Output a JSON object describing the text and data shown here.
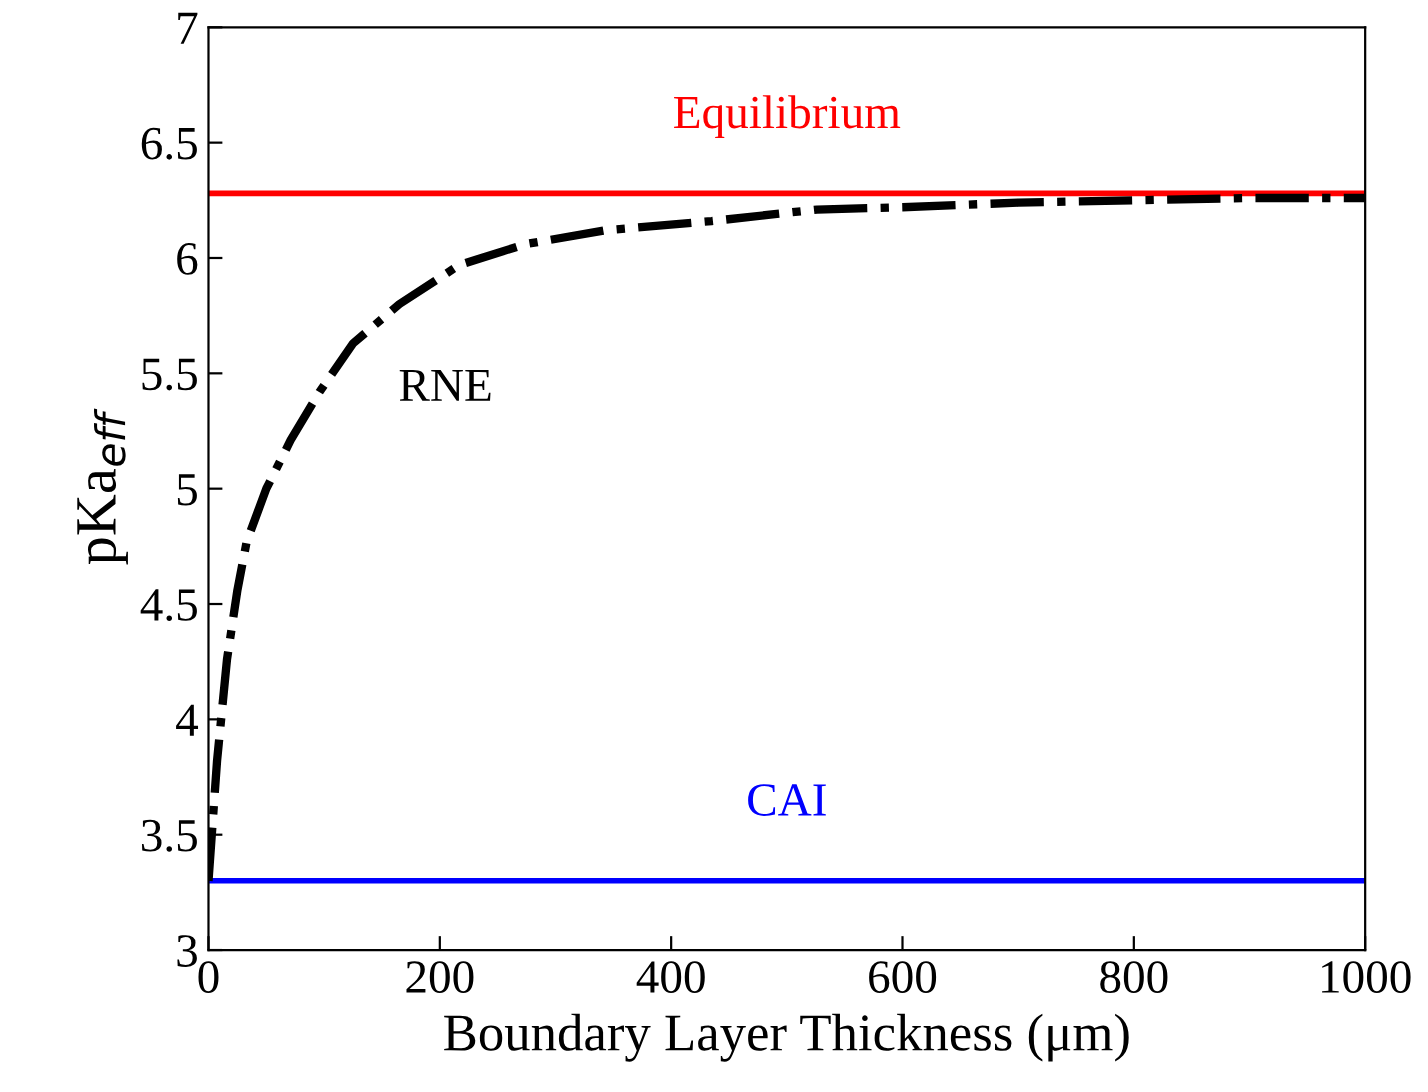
{
  "chart_data": {
    "type": "line",
    "xlabel": "Boundary Layer Thickness (μm)",
    "ylabel": "pKa$_{eff}$",
    "x": [
      0,
      7.4,
      16,
      25,
      33,
      50,
      71,
      96,
      125,
      165,
      217,
      274,
      343,
      435,
      526,
      600,
      700,
      800,
      900,
      1000
    ],
    "series": [
      {
        "name": "RNE",
        "color": "#000000",
        "line_style": "dashdot",
        "values": [
          3.3,
          3.82,
          4.26,
          4.56,
          4.77,
          5.0,
          5.21,
          5.42,
          5.63,
          5.8,
          5.97,
          6.06,
          6.12,
          6.16,
          6.21,
          6.22,
          6.24,
          6.25,
          6.26,
          6.26
        ]
      }
    ],
    "ref_lines": [
      {
        "axis": "y",
        "value": 6.28,
        "label": "Equilibrium",
        "color": "#ff0000"
      },
      {
        "axis": "y",
        "value": 3.3,
        "label": "CAI",
        "color": "#0000ff"
      }
    ],
    "xlim": [
      0,
      1000
    ],
    "xticks": [
      0,
      200,
      400,
      600,
      800,
      1000
    ],
    "ylim": [
      3,
      7
    ],
    "yticks": [
      3,
      3.5,
      4,
      4.5,
      5,
      5.5,
      6,
      6.5,
      7
    ],
    "grid": false,
    "legend": false
  }
}
